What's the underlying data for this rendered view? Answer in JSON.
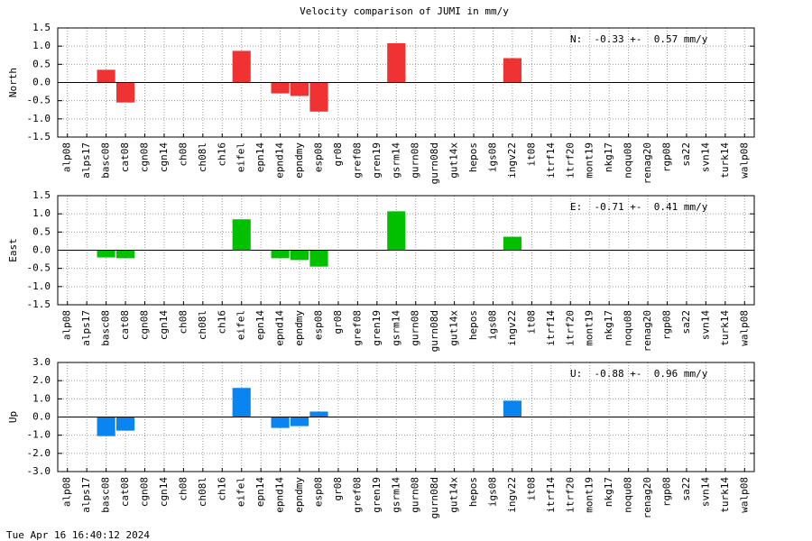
{
  "title": "Velocity comparison of JUMI in mm/y",
  "timestamp": "Tue Apr 16 16:40:12 2024",
  "chart_data": [
    {
      "type": "bar",
      "ylabel": "North",
      "annotation": "N:  -0.33 +-  0.57 mm/y",
      "color": "#f03232",
      "grid": true,
      "categories": [
        "alp08",
        "alps17",
        "basc08",
        "cat08",
        "cgn08",
        "cgn14",
        "ch08",
        "ch08l",
        "ch16",
        "eifel",
        "epn14",
        "epnd14",
        "epndmy",
        "esp08",
        "gr08",
        "gref08",
        "gren19",
        "gsrm14",
        "gurn08",
        "gurn08d",
        "gut14x",
        "hepos",
        "igs08",
        "ingv22",
        "it08",
        "itrf14",
        "itrf20",
        "mont19",
        "nkg17",
        "noqu08",
        "renag20",
        "rgp08",
        "sa22",
        "svn14",
        "turk14",
        "walp08"
      ],
      "values": [
        null,
        null,
        0.35,
        -0.55,
        null,
        null,
        null,
        null,
        null,
        0.87,
        null,
        -0.3,
        -0.37,
        -0.8,
        null,
        null,
        null,
        1.08,
        null,
        null,
        null,
        null,
        null,
        0.67,
        null,
        null,
        null,
        null,
        null,
        null,
        null,
        null,
        null,
        null,
        null,
        null
      ],
      "ylim": [
        -1.5,
        1.5
      ],
      "yticks": [
        -1.5,
        {
          "value": -1,
          "label": "-1.0"
        },
        -0.5,
        {
          "value": 0,
          "label": "0.0"
        },
        0.5,
        {
          "value": 1,
          "label": "1.0"
        },
        1.5
      ]
    },
    {
      "type": "bar",
      "ylabel": "East",
      "annotation": "E:  -0.71 +-  0.41 mm/y",
      "color": "#00c000",
      "grid": true,
      "categories": [
        "alp08",
        "alps17",
        "basc08",
        "cat08",
        "cgn08",
        "cgn14",
        "ch08",
        "ch08l",
        "ch16",
        "eifel",
        "epn14",
        "epnd14",
        "epndmy",
        "esp08",
        "gr08",
        "gref08",
        "gren19",
        "gsrm14",
        "gurn08",
        "gurn08d",
        "gut14x",
        "hepos",
        "igs08",
        "ingv22",
        "it08",
        "itrf14",
        "itrf20",
        "mont19",
        "nkg17",
        "noqu08",
        "renag20",
        "rgp08",
        "sa22",
        "svn14",
        "turk14",
        "walp08"
      ],
      "values": [
        null,
        null,
        -0.2,
        -0.22,
        null,
        null,
        null,
        null,
        null,
        0.85,
        null,
        -0.22,
        -0.27,
        -0.45,
        null,
        null,
        null,
        1.07,
        null,
        null,
        null,
        null,
        null,
        0.37,
        null,
        null,
        null,
        null,
        null,
        null,
        null,
        null,
        null,
        null,
        null,
        null
      ],
      "ylim": [
        -1.5,
        1.5
      ],
      "yticks": [
        -1.5,
        {
          "value": -1,
          "label": "-1.0"
        },
        -0.5,
        {
          "value": 0,
          "label": "0.0"
        },
        0.5,
        {
          "value": 1,
          "label": "1.0"
        },
        1.5
      ]
    },
    {
      "type": "bar",
      "ylabel": "Up",
      "annotation": "U:  -0.88 +-  0.96 mm/y",
      "color": "#0a84f0",
      "grid": true,
      "categories": [
        "alp08",
        "alps17",
        "basc08",
        "cat08",
        "cgn08",
        "cgn14",
        "ch08",
        "ch08l",
        "ch16",
        "eifel",
        "epn14",
        "epnd14",
        "epndmy",
        "esp08",
        "gr08",
        "gref08",
        "gren19",
        "gsrm14",
        "gurn08",
        "gurn08d",
        "gut14x",
        "hepos",
        "igs08",
        "ingv22",
        "it08",
        "itrf14",
        "itrf20",
        "mont19",
        "nkg17",
        "noqu08",
        "renag20",
        "rgp08",
        "sa22",
        "svn14",
        "turk14",
        "walp08"
      ],
      "values": [
        null,
        null,
        -1.05,
        -0.75,
        null,
        null,
        null,
        null,
        null,
        1.6,
        null,
        -0.6,
        -0.5,
        0.3,
        null,
        null,
        null,
        null,
        null,
        null,
        null,
        null,
        null,
        0.9,
        null,
        null,
        null,
        null,
        null,
        null,
        null,
        null,
        null,
        null,
        null,
        null
      ],
      "ylim": [
        -3,
        3
      ],
      "yticks": [
        {
          "value": -3,
          "label": "-3.0"
        },
        {
          "value": -2,
          "label": "-2.0"
        },
        {
          "value": -1,
          "label": "-1.0"
        },
        {
          "value": 0,
          "label": "0.0"
        },
        {
          "value": 1,
          "label": "1.0"
        },
        {
          "value": 2,
          "label": "2.0"
        },
        {
          "value": 3,
          "label": "3.0"
        }
      ]
    }
  ]
}
